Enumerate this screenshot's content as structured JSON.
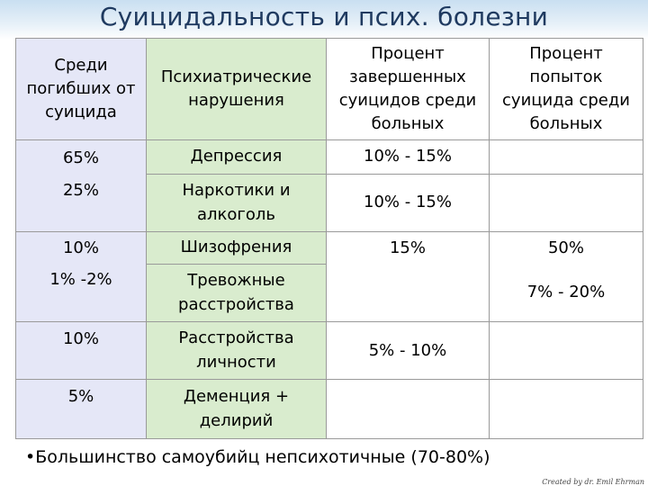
{
  "title": "Суицидальность и псих. болезни",
  "headers": {
    "col1": [
      "Среди",
      "погибших от",
      "суицида"
    ],
    "col2": [
      "Психиатрические",
      "нарушения"
    ],
    "col3": [
      "Процент",
      "завершенных",
      "суицидов среди",
      "больных"
    ],
    "col4": [
      "Процент",
      "попыток",
      "суицида среди",
      "больных"
    ]
  },
  "rows": [
    {
      "percent": "65%",
      "disorder": [
        "Депрессия"
      ]
    },
    {
      "percent": "25%",
      "disorder": [
        "Наркотики и",
        "алкоголь"
      ]
    },
    {
      "percent": "10%",
      "disorder": [
        "Шизофрения"
      ]
    },
    {
      "percent": "1% -2%",
      "disorder": [
        "Тревожные",
        "расстройства"
      ]
    },
    {
      "percent": "10%",
      "disorder": [
        "Расстройства",
        "личности"
      ]
    },
    {
      "percent": "5%",
      "disorder": [
        "Деменция +",
        "делирий"
      ]
    }
  ],
  "completed": {
    "depression": "10% - 15%",
    "substance": "10% - 15%",
    "schizophrenia": "15%",
    "personality": "5% - 10%"
  },
  "attempts": {
    "schizophrenia": "50%",
    "anxiety": "7% - 20%"
  },
  "footer": "•Большинство самоубийц непсихотичные (70-80%)",
  "credit": "Created by dr. Emil Ehrman"
}
